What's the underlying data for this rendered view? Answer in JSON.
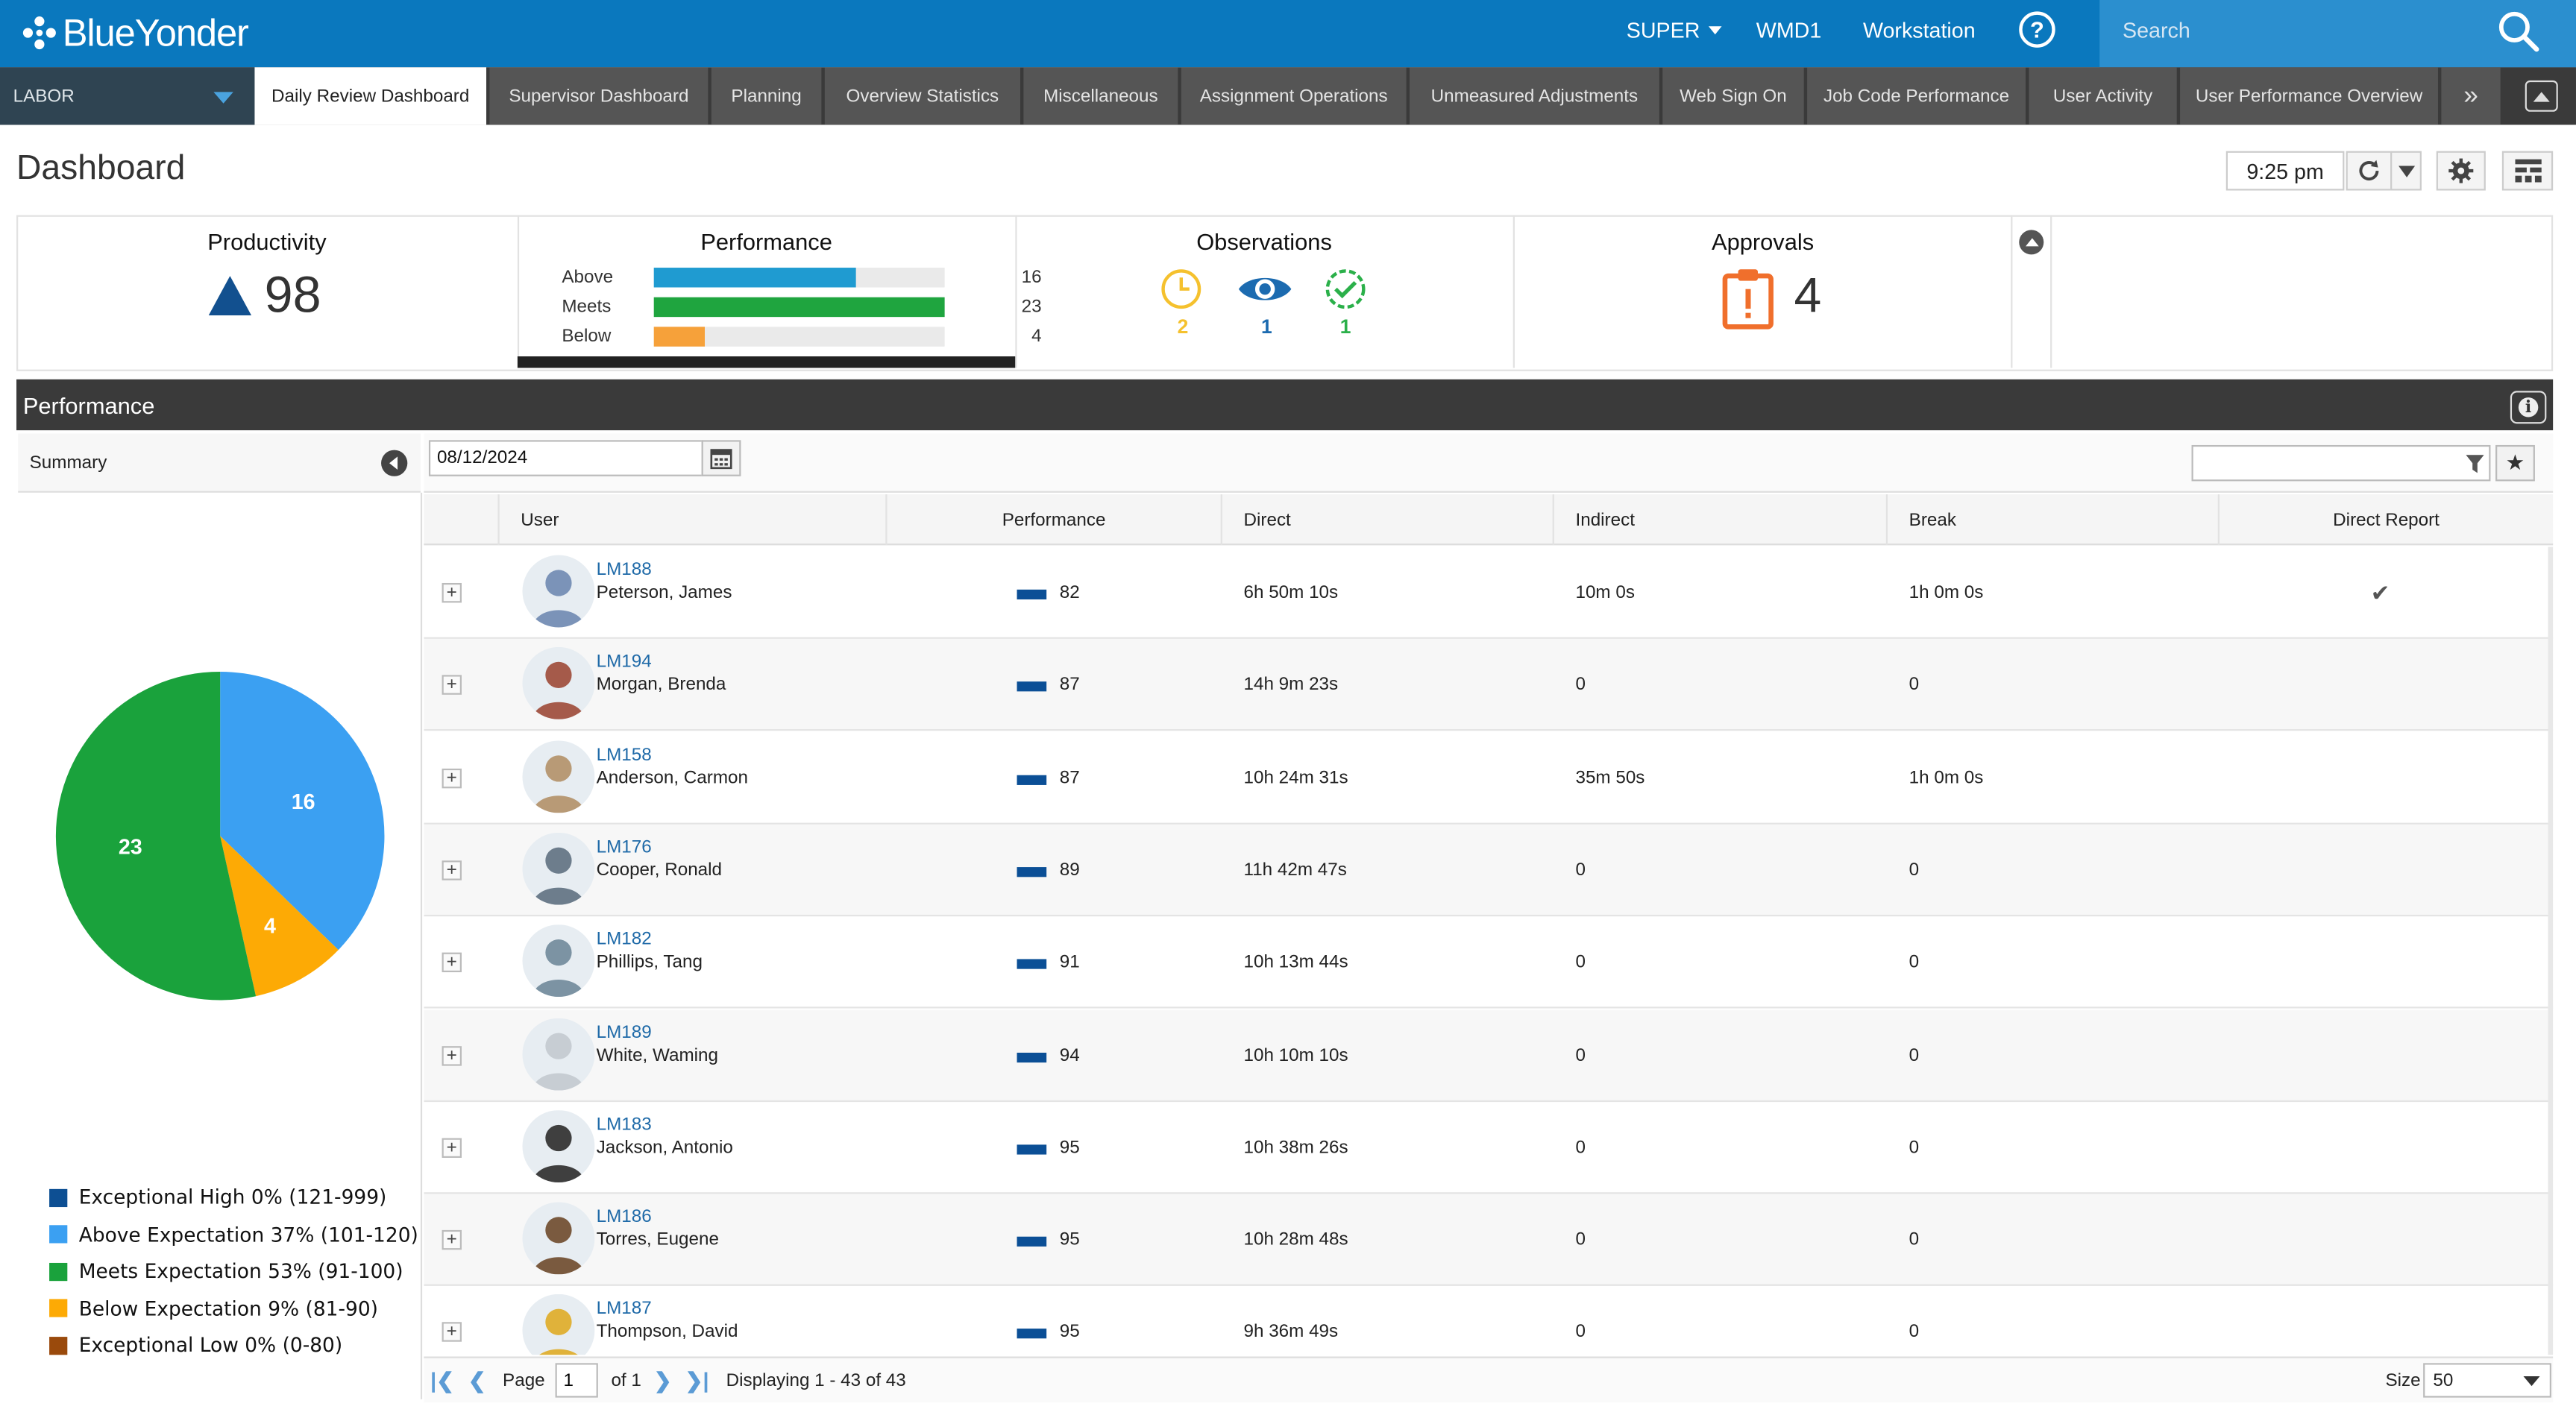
{
  "app": {
    "brand": "BlueYonder"
  },
  "topnav": {
    "user": "SUPER",
    "site": "WMD1",
    "workstation": "Workstation",
    "help_icon": "help-icon",
    "search_placeholder": "Search"
  },
  "module": {
    "selected": "LABOR"
  },
  "tabs": [
    {
      "label": "Daily Review Dashboard",
      "active": true
    },
    {
      "label": "Supervisor Dashboard"
    },
    {
      "label": "Planning"
    },
    {
      "label": "Overview Statistics"
    },
    {
      "label": "Miscellaneous"
    },
    {
      "label": "Assignment Operations"
    },
    {
      "label": "Unmeasured Adjustments"
    },
    {
      "label": "Web Sign On"
    },
    {
      "label": "Job Code Performance"
    },
    {
      "label": "User Activity"
    },
    {
      "label": "User Performance Overview"
    }
  ],
  "page": {
    "title": "Dashboard",
    "time": "9:25 pm"
  },
  "cards": {
    "productivity": {
      "title": "Productivity",
      "value": "98"
    },
    "performance": {
      "title": "Performance",
      "rows": [
        {
          "label": "Above",
          "value": 16,
          "color": "#1f9bd1"
        },
        {
          "label": "Meets",
          "value": 23,
          "color": "#1fa53f"
        },
        {
          "label": "Below",
          "value": 4,
          "color": "#f6a13a"
        }
      ],
      "max": 23
    },
    "observations": {
      "title": "Observations",
      "items": [
        {
          "icon": "clock-icon",
          "value": "2",
          "color": "#f5c12e"
        },
        {
          "icon": "eye-icon",
          "value": "1",
          "color": "#1c6bb0"
        },
        {
          "icon": "check-circle-icon",
          "value": "1",
          "color": "#2bb04a"
        }
      ]
    },
    "approvals": {
      "title": "Approvals",
      "value": "4"
    }
  },
  "panel": {
    "title": "Performance",
    "summary_label": "Summary",
    "date": "08/12/2024"
  },
  "chart_data": {
    "type": "pie",
    "slices": [
      {
        "label": "Above Expectation",
        "value": 16,
        "color": "#3ba0f2"
      },
      {
        "label": "Below Expectation",
        "value": 4,
        "color": "#fdaa05"
      },
      {
        "label": "Meets Expectation",
        "value": 23,
        "color": "#1aa23c"
      }
    ],
    "legend": [
      {
        "text": "Exceptional High 0% (121-999)",
        "color": "#0d4f93"
      },
      {
        "text": "Above Expectation 37% (101-120)",
        "color": "#3ba0f2"
      },
      {
        "text": "Meets Expectation 53% (91-100)",
        "color": "#1aa23c"
      },
      {
        "text": "Below Expectation 9% (81-90)",
        "color": "#fdaa05"
      },
      {
        "text": "Exceptional Low 0% (0-80)",
        "color": "#9a4a0c"
      }
    ]
  },
  "grid": {
    "columns": [
      "User",
      "Performance",
      "Direct",
      "Indirect",
      "Break",
      "Direct Report"
    ],
    "rows": [
      {
        "id": "LM188",
        "name": "Peterson, James",
        "performance": "82",
        "direct": "6h 50m 10s",
        "indirect": "10m  0s",
        "break": "1h  0m  0s",
        "direct_report": true,
        "avatar": "#7b93b8"
      },
      {
        "id": "LM194",
        "name": "Morgan, Brenda",
        "performance": "87",
        "direct": "14h  9m 23s",
        "indirect": "0",
        "break": "0",
        "direct_report": false,
        "avatar": "#a55a4a"
      },
      {
        "id": "LM158",
        "name": "Anderson, Carmon",
        "performance": "87",
        "direct": "10h 24m 31s",
        "indirect": "35m 50s",
        "break": "1h  0m  0s",
        "direct_report": false,
        "avatar": "#b89a76"
      },
      {
        "id": "LM176",
        "name": "Cooper, Ronald",
        "performance": "89",
        "direct": "11h 42m 47s",
        "indirect": "0",
        "break": "0",
        "direct_report": false,
        "avatar": "#6d7d8c"
      },
      {
        "id": "LM182",
        "name": "Phillips, Tang",
        "performance": "91",
        "direct": "10h 13m 44s",
        "indirect": "0",
        "break": "0",
        "direct_report": false,
        "avatar": "#7c93a3"
      },
      {
        "id": "LM189",
        "name": "White, Waming",
        "performance": "94",
        "direct": "10h 10m 10s",
        "indirect": "0",
        "break": "0",
        "direct_report": false,
        "avatar": "#c7cdd3"
      },
      {
        "id": "LM183",
        "name": "Jackson, Antonio",
        "performance": "95",
        "direct": "10h 38m 26s",
        "indirect": "0",
        "break": "0",
        "direct_report": false,
        "avatar": "#3f3f3f"
      },
      {
        "id": "LM186",
        "name": "Torres, Eugene",
        "performance": "95",
        "direct": "10h 28m 48s",
        "indirect": "0",
        "break": "0",
        "direct_report": false,
        "avatar": "#7a5a3f"
      },
      {
        "id": "LM187",
        "name": "Thompson, David",
        "performance": "95",
        "direct": "9h 36m 49s",
        "indirect": "0",
        "break": "0",
        "direct_report": false,
        "avatar": "#e0b23a"
      }
    ]
  },
  "pager": {
    "page_label": "Page",
    "page": "1",
    "of_label": "of 1",
    "display": "Displaying 1 - 43 of 43",
    "size_label": "Size",
    "size": "50"
  }
}
